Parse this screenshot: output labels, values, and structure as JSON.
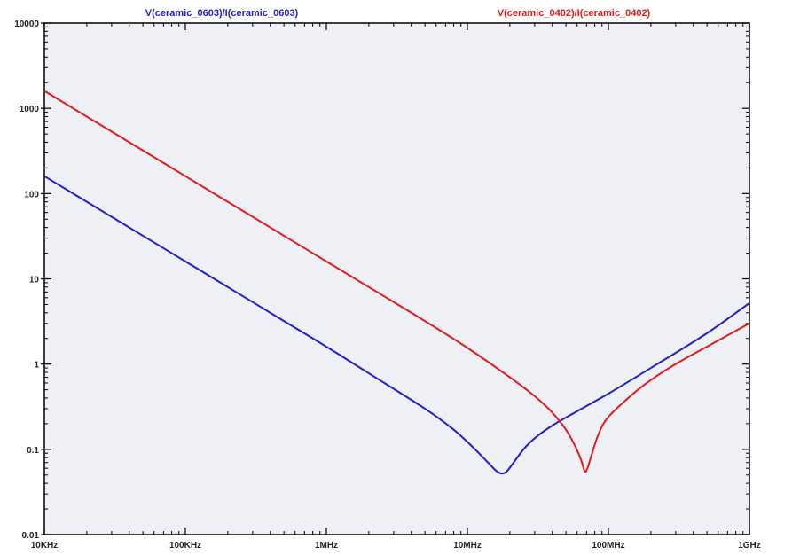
{
  "chart_data": {
    "type": "line",
    "title": "",
    "xlabel": "",
    "ylabel": "",
    "x_scale": "log",
    "y_scale": "log",
    "xlim": [
      10000,
      1000000000
    ],
    "ylim": [
      0.01,
      10000
    ],
    "grid": false,
    "legend_placement": "top",
    "x_ticks": [
      {
        "value": 10000,
        "label": "10KHz"
      },
      {
        "value": 100000,
        "label": "100KHz"
      },
      {
        "value": 1000000,
        "label": "1MHz"
      },
      {
        "value": 10000000,
        "label": "10MHz"
      },
      {
        "value": 100000000,
        "label": "100MHz"
      },
      {
        "value": 1000000000,
        "label": "1GHz"
      }
    ],
    "y_ticks": [
      {
        "value": 10000,
        "label": "10000"
      },
      {
        "value": 1000,
        "label": "1000"
      },
      {
        "value": 100,
        "label": "100"
      },
      {
        "value": 10,
        "label": "10"
      },
      {
        "value": 1,
        "label": "1"
      },
      {
        "value": 0.1,
        "label": "0.1"
      },
      {
        "value": 0.01,
        "label": "0.01"
      }
    ],
    "series": [
      {
        "name": "V(ceramic_0603)/I(ceramic_0603)",
        "color": "#1f1fc8",
        "x": [
          10000,
          20000,
          50000,
          100000,
          200000,
          500000,
          1000000,
          2000000,
          5000000,
          8000000,
          11000000,
          14000000,
          16000000,
          17500000,
          19000000,
          21000000,
          25000000,
          30000000,
          40000000,
          60000000,
          100000000,
          200000000,
          500000000,
          1000000000
        ],
        "y": [
          160,
          80,
          32,
          16,
          8,
          3.2,
          1.6,
          0.78,
          0.3,
          0.17,
          0.105,
          0.07,
          0.056,
          0.052,
          0.055,
          0.068,
          0.1,
          0.135,
          0.19,
          0.28,
          0.45,
          0.9,
          2.3,
          5.2
        ]
      },
      {
        "name": "V(ceramic_0402)/I(ceramic_0402)",
        "color": "#e01b1b",
        "x": [
          10000,
          20000,
          50000,
          100000,
          200000,
          500000,
          1000000,
          2000000,
          5000000,
          10000000,
          20000000,
          30000000,
          40000000,
          50000000,
          58000000,
          64000000,
          68000000,
          71000000,
          75000000,
          85000000,
          100000000,
          150000000,
          200000000,
          300000000,
          500000000,
          1000000000
        ],
        "y": [
          1600,
          800,
          320,
          160,
          80,
          32,
          16,
          8,
          3.2,
          1.55,
          0.7,
          0.42,
          0.27,
          0.17,
          0.11,
          0.075,
          0.055,
          0.06,
          0.08,
          0.15,
          0.24,
          0.45,
          0.65,
          1.0,
          1.6,
          3.0
        ]
      }
    ]
  }
}
